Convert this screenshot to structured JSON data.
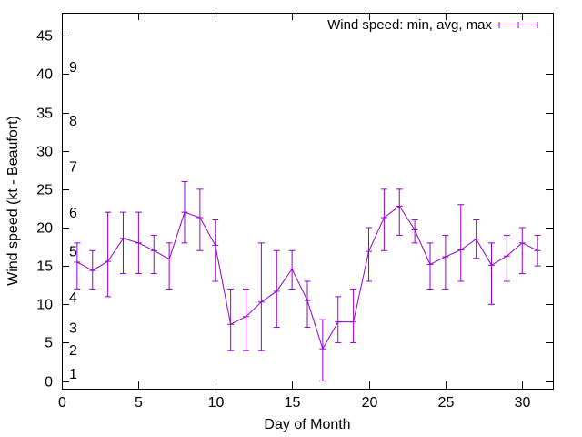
{
  "chart_data": {
    "type": "line",
    "title": "",
    "xlabel": "Day of Month",
    "ylabel": "Wind speed (kt - Beaufort)",
    "xlim": [
      0,
      32
    ],
    "ylim": [
      -1,
      48
    ],
    "xticks": [
      0,
      5,
      10,
      15,
      20,
      25,
      30
    ],
    "yticks": [
      0,
      5,
      10,
      15,
      20,
      25,
      30,
      35,
      40,
      45
    ],
    "grid": false,
    "legend_position": "top-right",
    "color": "#9400d3",
    "series": [
      {
        "name": "Wind speed: min, avg, max",
        "x": [
          1,
          2,
          3,
          4,
          5,
          6,
          7,
          8,
          9,
          10,
          11,
          12,
          13,
          14,
          15,
          16,
          17,
          18,
          19,
          20,
          21,
          22,
          23,
          24,
          25,
          26,
          27,
          28,
          29,
          30,
          31
        ],
        "avg": [
          15.5,
          14.4,
          15.6,
          18.6,
          18.0,
          17.0,
          15.9,
          22.0,
          21.3,
          17.7,
          7.4,
          8.4,
          10.3,
          11.7,
          14.6,
          10.5,
          4.2,
          7.7,
          7.7,
          16.9,
          21.3,
          22.8,
          19.7,
          15.2,
          16.2,
          17.1,
          18.5,
          15.1,
          16.3,
          18.0,
          17.0
        ],
        "min": [
          12,
          12,
          11,
          14,
          14,
          14,
          12,
          18,
          17,
          13,
          4,
          4,
          4,
          7,
          12,
          7,
          0,
          5,
          5,
          13,
          17,
          19,
          18,
          12,
          12,
          13,
          16,
          10,
          13,
          14,
          15
        ],
        "max": [
          18,
          17,
          22,
          22,
          22,
          19,
          18,
          26,
          25,
          21,
          12,
          12,
          18,
          17,
          17,
          13,
          8,
          11,
          12,
          20,
          25,
          25,
          21,
          18,
          19,
          23,
          21,
          18,
          19,
          20,
          19
        ]
      }
    ],
    "beaufort_labels": [
      {
        "label": "1",
        "y": 1.0
      },
      {
        "label": "2",
        "y": 4.1
      },
      {
        "label": "3",
        "y": 7.0
      },
      {
        "label": "4",
        "y": 11.0
      },
      {
        "label": "5",
        "y": 17.0
      },
      {
        "label": "6",
        "y": 22.0
      },
      {
        "label": "7",
        "y": 28.0
      },
      {
        "label": "8",
        "y": 34.0
      },
      {
        "label": "9",
        "y": 41.0
      }
    ]
  }
}
